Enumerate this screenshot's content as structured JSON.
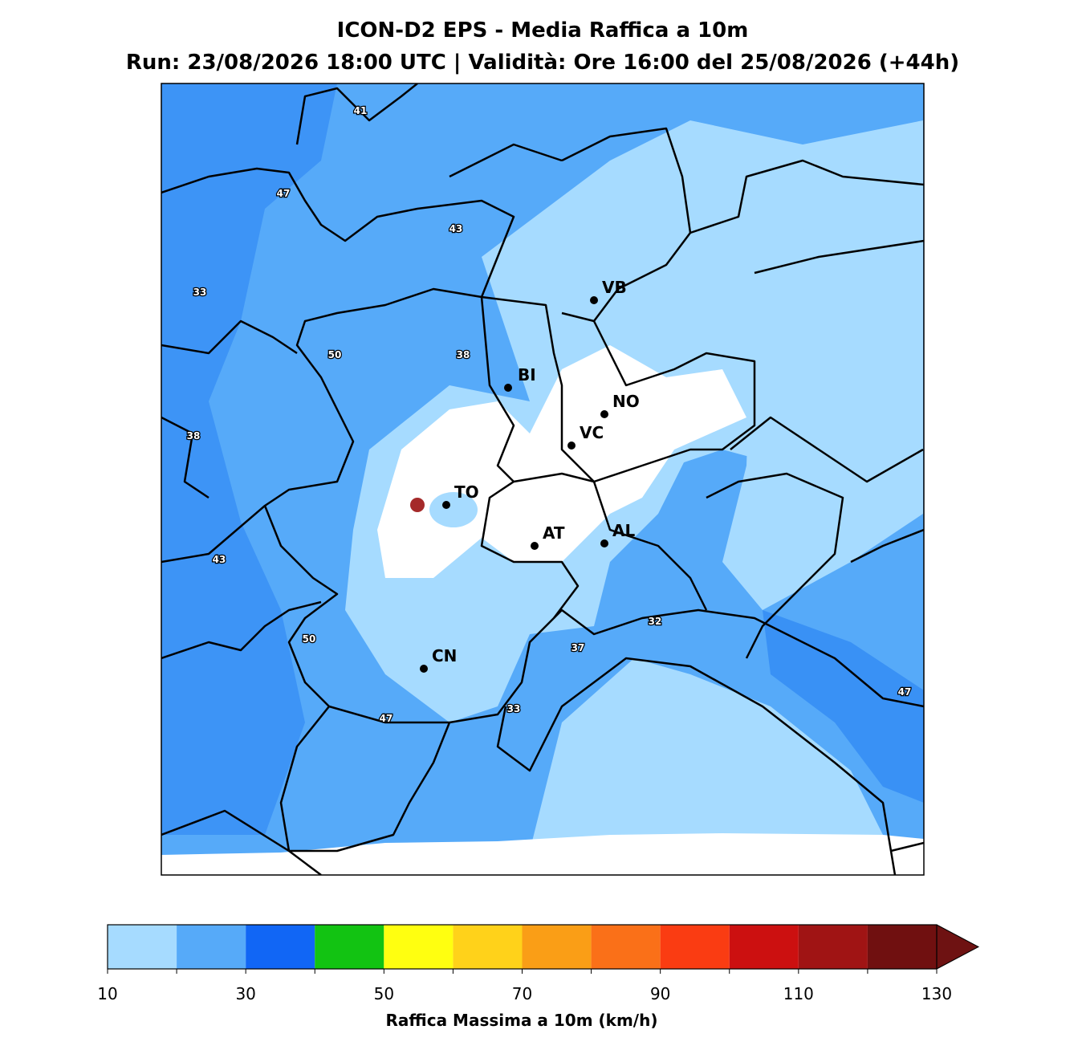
{
  "title": "ICON-D2 EPS - Media Raffica a 10m",
  "subtitle": "Run: 23/08/2026 18:00 UTC | Validità: Ore 16:00 del 25/08/2026 (+44h)",
  "cities": [
    "VB",
    "BI",
    "NO",
    "VC",
    "TO",
    "AT",
    "AL",
    "CN"
  ],
  "contour_labels": [
    41,
    47,
    43,
    33,
    50,
    38,
    38,
    43,
    50,
    47,
    33,
    37,
    32,
    47
  ],
  "colorbar": {
    "label": "Raffica Massima a 10m (km/h)",
    "levels": [
      10,
      20,
      30,
      40,
      50,
      60,
      70,
      80,
      90,
      100,
      110,
      120,
      130
    ],
    "colors": [
      "#a6dbff",
      "#56aaf9",
      "#1166f5",
      "#12c312",
      "#ffff10",
      "#ffd21a",
      "#fa9e16",
      "#fa7018",
      "#fa3c12",
      "#cc1010",
      "#a01414",
      "#701010"
    ],
    "extend_color": "#6e1212",
    "ticks": [
      10,
      30,
      50,
      70,
      90,
      110,
      130
    ]
  }
}
